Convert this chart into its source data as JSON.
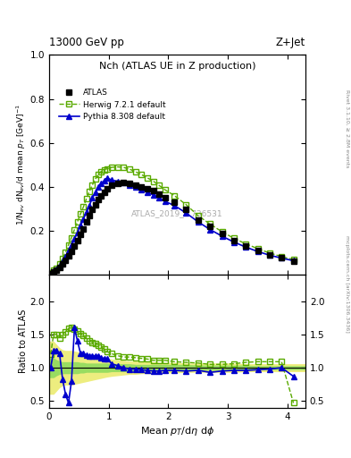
{
  "title_top": "13000 GeV pp",
  "title_right": "Z+Jet",
  "plot_title": "Nch (ATLAS UE in Z production)",
  "xlabel": "Mean $p_T$/d$\\eta$ d$\\phi$",
  "ylabel_main": "1/N$_{ev}$ dN$_{ev}$/d mean $p_T$ [GeV]$^{-1}$",
  "ylabel_ratio": "Ratio to ATLAS",
  "watermark": "ATLAS_2019_I1736531",
  "right_label": "Rivet 3.1.10, ≥ 2.8M events",
  "right_label2": "mcplots.cern.ch [arXiv:1306.3436]",
  "atlas_x": [
    0.025,
    0.075,
    0.125,
    0.175,
    0.225,
    0.275,
    0.325,
    0.375,
    0.425,
    0.475,
    0.525,
    0.575,
    0.625,
    0.675,
    0.725,
    0.775,
    0.825,
    0.875,
    0.925,
    0.975,
    1.05,
    1.15,
    1.25,
    1.35,
    1.45,
    1.55,
    1.65,
    1.75,
    1.85,
    1.95,
    2.1,
    2.3,
    2.5,
    2.7,
    2.9,
    3.1,
    3.3,
    3.5,
    3.7,
    3.9,
    4.1
  ],
  "atlas_y": [
    0.005,
    0.012,
    0.02,
    0.033,
    0.048,
    0.065,
    0.085,
    0.105,
    0.13,
    0.155,
    0.182,
    0.208,
    0.24,
    0.268,
    0.295,
    0.318,
    0.34,
    0.36,
    0.375,
    0.39,
    0.405,
    0.415,
    0.42,
    0.415,
    0.408,
    0.4,
    0.392,
    0.382,
    0.365,
    0.348,
    0.33,
    0.295,
    0.25,
    0.22,
    0.185,
    0.155,
    0.13,
    0.108,
    0.09,
    0.075,
    0.06
  ],
  "herwig_x": [
    0.025,
    0.075,
    0.125,
    0.175,
    0.225,
    0.275,
    0.325,
    0.375,
    0.425,
    0.475,
    0.525,
    0.575,
    0.625,
    0.675,
    0.725,
    0.775,
    0.825,
    0.875,
    0.925,
    0.975,
    1.05,
    1.15,
    1.25,
    1.35,
    1.45,
    1.55,
    1.65,
    1.75,
    1.85,
    1.95,
    2.1,
    2.3,
    2.5,
    2.7,
    2.9,
    3.1,
    3.3,
    3.5,
    3.7,
    3.9,
    4.1
  ],
  "herwig_y": [
    0.006,
    0.018,
    0.03,
    0.048,
    0.072,
    0.1,
    0.135,
    0.168,
    0.205,
    0.24,
    0.275,
    0.308,
    0.345,
    0.378,
    0.408,
    0.435,
    0.455,
    0.47,
    0.478,
    0.482,
    0.488,
    0.49,
    0.488,
    0.48,
    0.468,
    0.455,
    0.44,
    0.425,
    0.405,
    0.385,
    0.36,
    0.318,
    0.268,
    0.23,
    0.195,
    0.165,
    0.14,
    0.118,
    0.098,
    0.082,
    0.068
  ],
  "pythia_x": [
    0.025,
    0.075,
    0.125,
    0.175,
    0.225,
    0.275,
    0.325,
    0.375,
    0.425,
    0.475,
    0.525,
    0.575,
    0.625,
    0.675,
    0.725,
    0.775,
    0.825,
    0.875,
    0.925,
    0.975,
    1.05,
    1.15,
    1.25,
    1.35,
    1.45,
    1.55,
    1.65,
    1.75,
    1.85,
    1.95,
    2.1,
    2.3,
    2.5,
    2.7,
    2.9,
    3.1,
    3.3,
    3.5,
    3.7,
    3.9,
    4.1
  ],
  "pythia_y": [
    0.005,
    0.015,
    0.025,
    0.04,
    0.06,
    0.082,
    0.108,
    0.135,
    0.162,
    0.192,
    0.222,
    0.252,
    0.285,
    0.315,
    0.348,
    0.375,
    0.398,
    0.415,
    0.428,
    0.44,
    0.43,
    0.425,
    0.418,
    0.408,
    0.398,
    0.388,
    0.375,
    0.362,
    0.348,
    0.332,
    0.315,
    0.28,
    0.24,
    0.205,
    0.175,
    0.148,
    0.125,
    0.105,
    0.088,
    0.075,
    0.063
  ],
  "ratio_herwig_x": [
    0.025,
    0.075,
    0.125,
    0.175,
    0.225,
    0.275,
    0.325,
    0.375,
    0.425,
    0.475,
    0.525,
    0.575,
    0.625,
    0.675,
    0.725,
    0.775,
    0.825,
    0.875,
    0.925,
    0.975,
    1.05,
    1.15,
    1.25,
    1.35,
    1.45,
    1.55,
    1.65,
    1.75,
    1.85,
    1.95,
    2.1,
    2.3,
    2.5,
    2.7,
    2.9,
    3.1,
    3.3,
    3.5,
    3.7,
    3.9,
    4.1
  ],
  "ratio_herwig_y": [
    1.2,
    1.5,
    1.5,
    1.45,
    1.5,
    1.54,
    1.59,
    1.6,
    1.58,
    1.55,
    1.51,
    1.48,
    1.44,
    1.41,
    1.38,
    1.37,
    1.34,
    1.31,
    1.28,
    1.24,
    1.21,
    1.18,
    1.16,
    1.16,
    1.15,
    1.14,
    1.13,
    1.11,
    1.11,
    1.11,
    1.09,
    1.08,
    1.07,
    1.05,
    1.05,
    1.06,
    1.08,
    1.09,
    1.09,
    1.09,
    0.47
  ],
  "ratio_pythia_x": [
    0.025,
    0.075,
    0.125,
    0.175,
    0.225,
    0.275,
    0.325,
    0.375,
    0.425,
    0.475,
    0.525,
    0.575,
    0.625,
    0.675,
    0.725,
    0.775,
    0.825,
    0.875,
    0.925,
    0.975,
    1.05,
    1.15,
    1.25,
    1.35,
    1.45,
    1.55,
    1.65,
    1.75,
    1.85,
    1.95,
    2.1,
    2.3,
    2.5,
    2.7,
    2.9,
    3.1,
    3.3,
    3.5,
    3.7,
    3.9,
    4.1
  ],
  "ratio_pythia_y": [
    1.0,
    1.25,
    1.25,
    1.21,
    0.83,
    0.6,
    0.47,
    0.8,
    1.6,
    1.4,
    1.22,
    1.21,
    1.19,
    1.18,
    1.18,
    1.18,
    1.17,
    1.15,
    1.14,
    1.13,
    1.06,
    1.03,
    1.0,
    0.98,
    0.98,
    0.97,
    0.96,
    0.95,
    0.95,
    0.96,
    0.96,
    0.95,
    0.96,
    0.93,
    0.95,
    0.96,
    0.96,
    0.97,
    0.98,
    1.0,
    0.87
  ],
  "band_x": [
    0.0,
    0.025,
    0.075,
    0.125,
    0.175,
    0.225,
    0.275,
    0.325,
    0.375,
    0.425,
    0.475,
    0.525,
    0.575,
    0.625,
    0.675,
    0.725,
    0.775,
    0.825,
    0.875,
    0.925,
    0.975,
    1.05,
    1.15,
    1.25,
    1.35,
    1.45,
    1.55,
    1.65,
    1.75,
    1.85,
    1.95,
    2.1,
    2.3,
    2.5,
    2.7,
    2.9,
    3.1,
    3.3,
    3.5,
    3.7,
    3.9,
    4.3
  ],
  "band_green_lo": [
    0.85,
    0.85,
    0.85,
    0.88,
    0.9,
    0.91,
    0.91,
    0.91,
    0.91,
    0.91,
    0.91,
    0.92,
    0.92,
    0.93,
    0.93,
    0.93,
    0.93,
    0.93,
    0.93,
    0.93,
    0.93,
    0.94,
    0.94,
    0.94,
    0.94,
    0.95,
    0.95,
    0.95,
    0.95,
    0.95,
    0.95,
    0.95,
    0.95,
    0.96,
    0.96,
    0.96,
    0.96,
    0.96,
    0.97,
    0.97,
    0.97,
    0.97
  ],
  "band_green_hi": [
    1.15,
    1.15,
    1.15,
    1.12,
    1.1,
    1.09,
    1.09,
    1.09,
    1.09,
    1.09,
    1.09,
    1.08,
    1.08,
    1.07,
    1.07,
    1.07,
    1.07,
    1.07,
    1.07,
    1.07,
    1.07,
    1.06,
    1.06,
    1.06,
    1.06,
    1.05,
    1.05,
    1.05,
    1.05,
    1.05,
    1.05,
    1.05,
    1.05,
    1.04,
    1.04,
    1.04,
    1.04,
    1.04,
    1.03,
    1.03,
    1.03,
    1.03
  ],
  "band_yellow_lo": [
    0.6,
    0.6,
    0.6,
    0.65,
    0.7,
    0.73,
    0.74,
    0.74,
    0.74,
    0.75,
    0.76,
    0.77,
    0.78,
    0.79,
    0.8,
    0.81,
    0.82,
    0.83,
    0.84,
    0.85,
    0.86,
    0.87,
    0.88,
    0.89,
    0.9,
    0.9,
    0.91,
    0.91,
    0.91,
    0.92,
    0.92,
    0.92,
    0.93,
    0.93,
    0.93,
    0.93,
    0.93,
    0.94,
    0.94,
    0.94,
    0.94,
    0.94
  ],
  "band_yellow_hi": [
    1.4,
    1.4,
    1.4,
    1.35,
    1.3,
    1.27,
    1.26,
    1.26,
    1.26,
    1.25,
    1.24,
    1.23,
    1.22,
    1.21,
    1.2,
    1.19,
    1.18,
    1.17,
    1.16,
    1.15,
    1.14,
    1.13,
    1.12,
    1.11,
    1.1,
    1.1,
    1.09,
    1.09,
    1.09,
    1.08,
    1.08,
    1.08,
    1.07,
    1.07,
    1.07,
    1.07,
    1.07,
    1.06,
    1.06,
    1.06,
    1.06,
    1.06
  ],
  "xlim": [
    0,
    4.3
  ],
  "ylim_main": [
    0,
    1.0
  ],
  "ylim_ratio": [
    0.4,
    2.4
  ],
  "yticks_main": [
    0.2,
    0.4,
    0.6,
    0.8,
    1.0
  ],
  "yticks_ratio": [
    0.5,
    1.0,
    1.5,
    2.0
  ],
  "xticks": [
    0,
    1,
    2,
    3,
    4
  ],
  "color_atlas": "#000000",
  "color_herwig": "#5aaa00",
  "color_pythia": "#0000cc",
  "color_band_green": "#44cc44",
  "color_band_yellow": "#dddd00",
  "alpha_green": 0.5,
  "alpha_yellow": 0.5
}
